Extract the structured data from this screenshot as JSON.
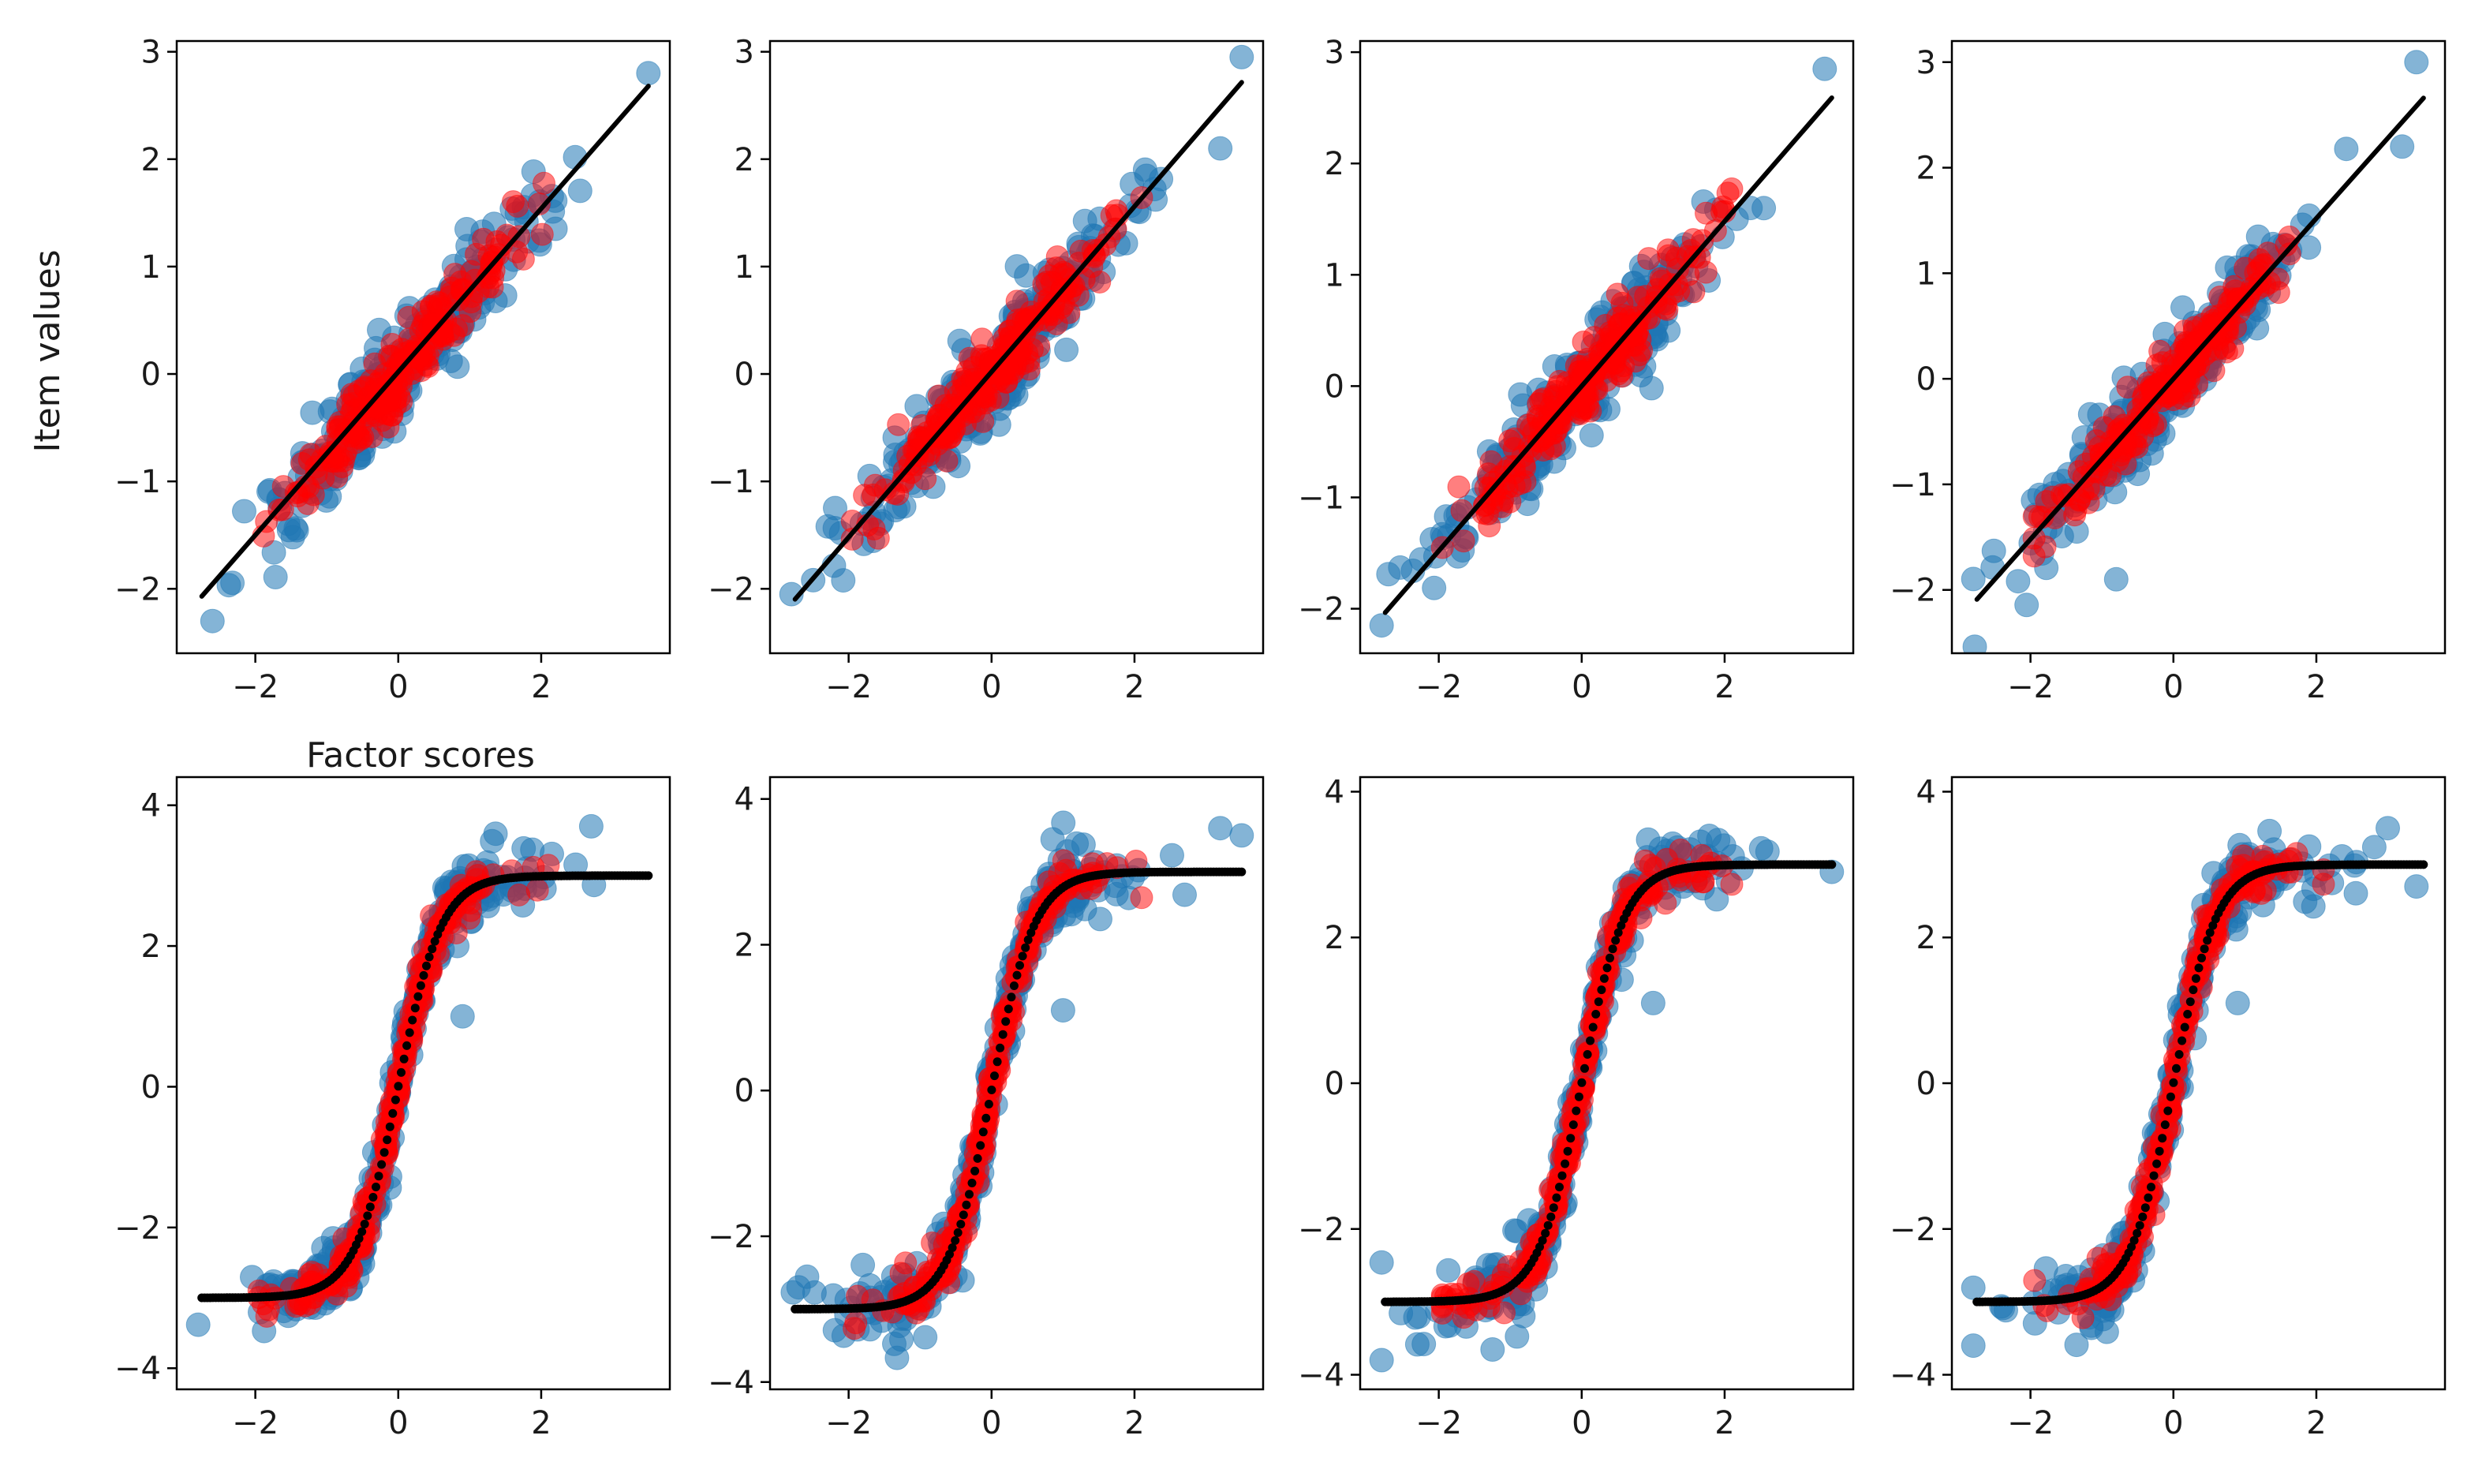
{
  "chart_data": {
    "type": "scatter",
    "layout": {
      "rows": 2,
      "cols": 4
    },
    "colors": {
      "observed": "#1f77b4",
      "predicted": "#ff0000",
      "fit": "#000000"
    },
    "xlabel": "Factor scores",
    "ylabel": "Item values",
    "legend": "none",
    "grid": false,
    "series": [
      {
        "name": "observed items",
        "color": "#1f77b4",
        "marker": "circle",
        "alpha": 0.55
      },
      {
        "name": "predicted items",
        "color": "#ff0000",
        "marker": "circle",
        "alpha": 0.5
      },
      {
        "name": "fitted curve",
        "color": "#000000",
        "marker": "line"
      }
    ],
    "panels": [
      {
        "row": 0,
        "col": 0,
        "model": "linear",
        "slope": 0.76,
        "intercept": 0.02,
        "noise": 0.22,
        "xlim": [
          -3.1,
          3.8
        ],
        "ylim": [
          -2.6,
          3.1
        ],
        "xticks": [
          -2,
          0,
          2
        ],
        "yticks": [
          -2,
          -1,
          0,
          1,
          2,
          3
        ],
        "tick_labels_x": [
          "−2",
          "0",
          "2"
        ],
        "tick_labels_y": [
          "−2",
          "−1",
          "0",
          "1",
          "2",
          "3"
        ],
        "outliers": [
          [
            3.5,
            2.8
          ],
          [
            -2.6,
            -2.3
          ]
        ]
      },
      {
        "row": 0,
        "col": 1,
        "model": "linear",
        "slope": 0.77,
        "intercept": 0.02,
        "noise": 0.22,
        "xlim": [
          -3.1,
          3.8
        ],
        "ylim": [
          -2.6,
          3.1
        ],
        "xticks": [
          -2,
          0,
          2
        ],
        "yticks": [
          -2,
          -1,
          0,
          1,
          2,
          3
        ],
        "tick_labels_x": [
          "−2",
          "0",
          "2"
        ],
        "tick_labels_y": [
          "−2",
          "−1",
          "0",
          "1",
          "2",
          "3"
        ],
        "outliers": [
          [
            3.5,
            2.95
          ],
          [
            3.2,
            2.1
          ]
        ]
      },
      {
        "row": 0,
        "col": 2,
        "model": "linear",
        "slope": 0.74,
        "intercept": 0.0,
        "noise": 0.22,
        "xlim": [
          -3.1,
          3.8
        ],
        "ylim": [
          -2.4,
          3.1
        ],
        "xticks": [
          -2,
          0,
          2
        ],
        "yticks": [
          -2,
          -1,
          0,
          1,
          2,
          3
        ],
        "tick_labels_x": [
          "−2",
          "0",
          "2"
        ],
        "tick_labels_y": [
          "−2",
          "−1",
          "0",
          "1",
          "2",
          "3"
        ],
        "outliers": [
          [
            3.4,
            2.85
          ],
          [
            -2.8,
            -2.15
          ]
        ]
      },
      {
        "row": 0,
        "col": 3,
        "model": "linear",
        "slope": 0.76,
        "intercept": 0.0,
        "noise": 0.22,
        "xlim": [
          -3.1,
          3.8
        ],
        "ylim": [
          -2.6,
          3.2
        ],
        "xticks": [
          -2,
          0,
          2
        ],
        "yticks": [
          -2,
          -1,
          0,
          1,
          2,
          3
        ],
        "tick_labels_x": [
          "−2",
          "0",
          "2"
        ],
        "tick_labels_y": [
          "−2",
          "−1",
          "0",
          "1",
          "2",
          "3"
        ],
        "outliers": [
          [
            3.4,
            3.0
          ],
          [
            3.2,
            2.2
          ],
          [
            -0.8,
            -1.9
          ]
        ]
      },
      {
        "row": 1,
        "col": 0,
        "model": "sigmoid",
        "amplitude": 3.0,
        "steepness": 2.2,
        "noise": 0.22,
        "xlim": [
          -3.1,
          3.8
        ],
        "ylim": [
          -4.3,
          4.4
        ],
        "xticks": [
          -2,
          0,
          2
        ],
        "yticks": [
          -4,
          -2,
          0,
          2,
          4
        ],
        "tick_labels_x": [
          "−2",
          "0",
          "2"
        ],
        "tick_labels_y": [
          "−4",
          "−2",
          "0",
          "2",
          "4"
        ],
        "outliers": [
          [
            2.7,
            3.7
          ],
          [
            0.9,
            1.0
          ]
        ]
      },
      {
        "row": 1,
        "col": 1,
        "model": "sigmoid",
        "amplitude": 3.0,
        "steepness": 2.2,
        "noise": 0.22,
        "xlim": [
          -3.1,
          3.8
        ],
        "ylim": [
          -4.1,
          4.3
        ],
        "xticks": [
          -2,
          0,
          2
        ],
        "yticks": [
          -4,
          -2,
          0,
          2,
          4
        ],
        "tick_labels_x": [
          "−2",
          "0",
          "2"
        ],
        "tick_labels_y": [
          "−4",
          "−2",
          "0",
          "2",
          "4"
        ],
        "outliers": [
          [
            3.2,
            3.6
          ],
          [
            3.5,
            3.5
          ],
          [
            -2.7,
            -2.7
          ],
          [
            1.0,
            1.1
          ]
        ]
      },
      {
        "row": 1,
        "col": 2,
        "model": "sigmoid",
        "amplitude": 3.0,
        "steepness": 2.2,
        "noise": 0.22,
        "xlim": [
          -3.1,
          3.8
        ],
        "ylim": [
          -4.2,
          4.2
        ],
        "xticks": [
          -2,
          0,
          2
        ],
        "yticks": [
          -4,
          -2,
          0,
          2,
          4
        ],
        "tick_labels_x": [
          "−2",
          "0",
          "2"
        ],
        "tick_labels_y": [
          "−4",
          "−2",
          "0",
          "2",
          "4"
        ],
        "outliers": [
          [
            3.5,
            2.9
          ],
          [
            -2.8,
            -3.8
          ],
          [
            1.0,
            1.1
          ]
        ]
      },
      {
        "row": 1,
        "col": 3,
        "model": "sigmoid",
        "amplitude": 3.0,
        "steepness": 2.2,
        "noise": 0.22,
        "xlim": [
          -3.1,
          3.8
        ],
        "ylim": [
          -4.2,
          4.2
        ],
        "xticks": [
          -2,
          0,
          2
        ],
        "yticks": [
          -4,
          -2,
          0,
          2,
          4
        ],
        "tick_labels_x": [
          "−2",
          "0",
          "2"
        ],
        "tick_labels_y": [
          "−4",
          "−2",
          "0",
          "2",
          "4"
        ],
        "outliers": [
          [
            3.0,
            3.5
          ],
          [
            3.4,
            2.7
          ],
          [
            -2.8,
            -3.6
          ],
          [
            0.9,
            1.1
          ]
        ]
      }
    ]
  }
}
